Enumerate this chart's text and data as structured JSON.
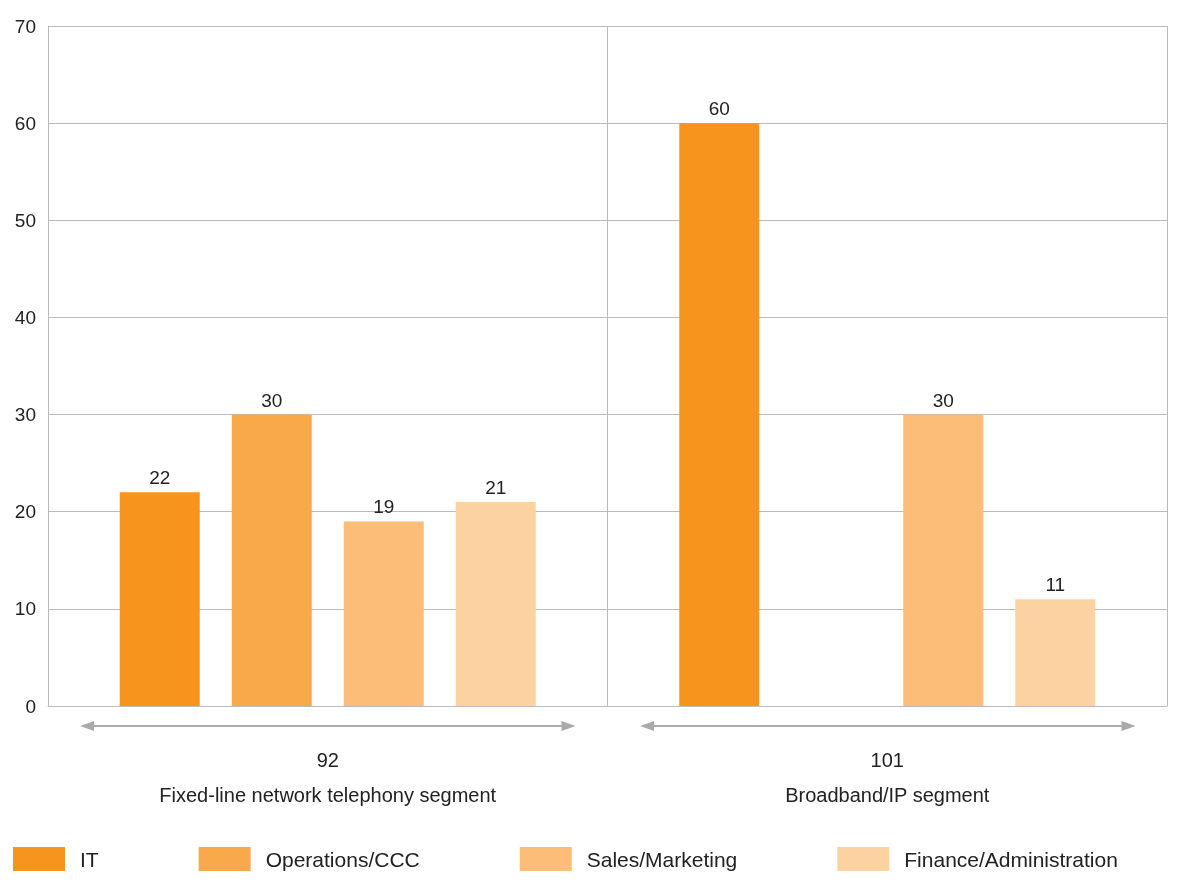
{
  "chart_data": {
    "type": "bar",
    "categories": [
      "Fixed-line network telephony segment",
      "Broadband/IP segment"
    ],
    "totals": [
      "92",
      "101"
    ],
    "series": [
      {
        "name": "IT",
        "color": "#f7941d",
        "values": [
          22,
          60
        ]
      },
      {
        "name": "Operations/CCC",
        "color": "#f9a94a",
        "values": [
          30,
          null
        ]
      },
      {
        "name": "Sales/Marketing",
        "color": "#fbbd78",
        "values": [
          19,
          30
        ]
      },
      {
        "name": "Finance/Administration",
        "color": "#fcd3a0",
        "values": [
          21,
          11
        ]
      }
    ],
    "ylim": [
      0,
      70
    ],
    "yticks": [
      0,
      10,
      20,
      30,
      40,
      50,
      60,
      70
    ],
    "grid": "y",
    "legend": "bottom",
    "data_labels": true
  }
}
